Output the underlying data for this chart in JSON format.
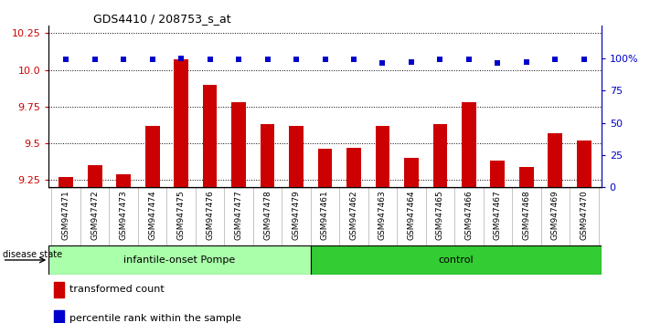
{
  "title": "GDS4410 / 208753_s_at",
  "samples": [
    "GSM947471",
    "GSM947472",
    "GSM947473",
    "GSM947474",
    "GSM947475",
    "GSM947476",
    "GSM947477",
    "GSM947478",
    "GSM947479",
    "GSM947461",
    "GSM947462",
    "GSM947463",
    "GSM947464",
    "GSM947465",
    "GSM947466",
    "GSM947467",
    "GSM947468",
    "GSM947469",
    "GSM947470"
  ],
  "bar_values": [
    9.27,
    9.35,
    9.29,
    9.62,
    10.07,
    9.9,
    9.78,
    9.63,
    9.62,
    9.46,
    9.47,
    9.62,
    9.4,
    9.63,
    9.78,
    9.38,
    9.34,
    9.57,
    9.52
  ],
  "dot_values": [
    99,
    99,
    99,
    99,
    100,
    99,
    99,
    99,
    99,
    99,
    99,
    96,
    97,
    99,
    99,
    96,
    97,
    99,
    99
  ],
  "bar_color": "#cc0000",
  "dot_color": "#0000cc",
  "ylim_left": [
    9.2,
    10.3
  ],
  "ylim_right": [
    0,
    125
  ],
  "yticks_left": [
    9.25,
    9.5,
    9.75,
    10.0,
    10.25
  ],
  "yticks_right": [
    0,
    25,
    50,
    75,
    100
  ],
  "ytick_labels_right": [
    "0",
    "25",
    "50",
    "75",
    "100%"
  ],
  "group1_label": "infantile-onset Pompe",
  "group2_label": "control",
  "group1_count": 9,
  "group2_count": 10,
  "group1_color": "#aaffaa",
  "group2_color": "#33cc33",
  "disease_state_label": "disease state",
  "legend1_label": "transformed count",
  "legend2_label": "percentile rank within the sample",
  "background_color": "#ffffff",
  "tick_bg_color": "#cccccc",
  "bar_width": 0.5
}
